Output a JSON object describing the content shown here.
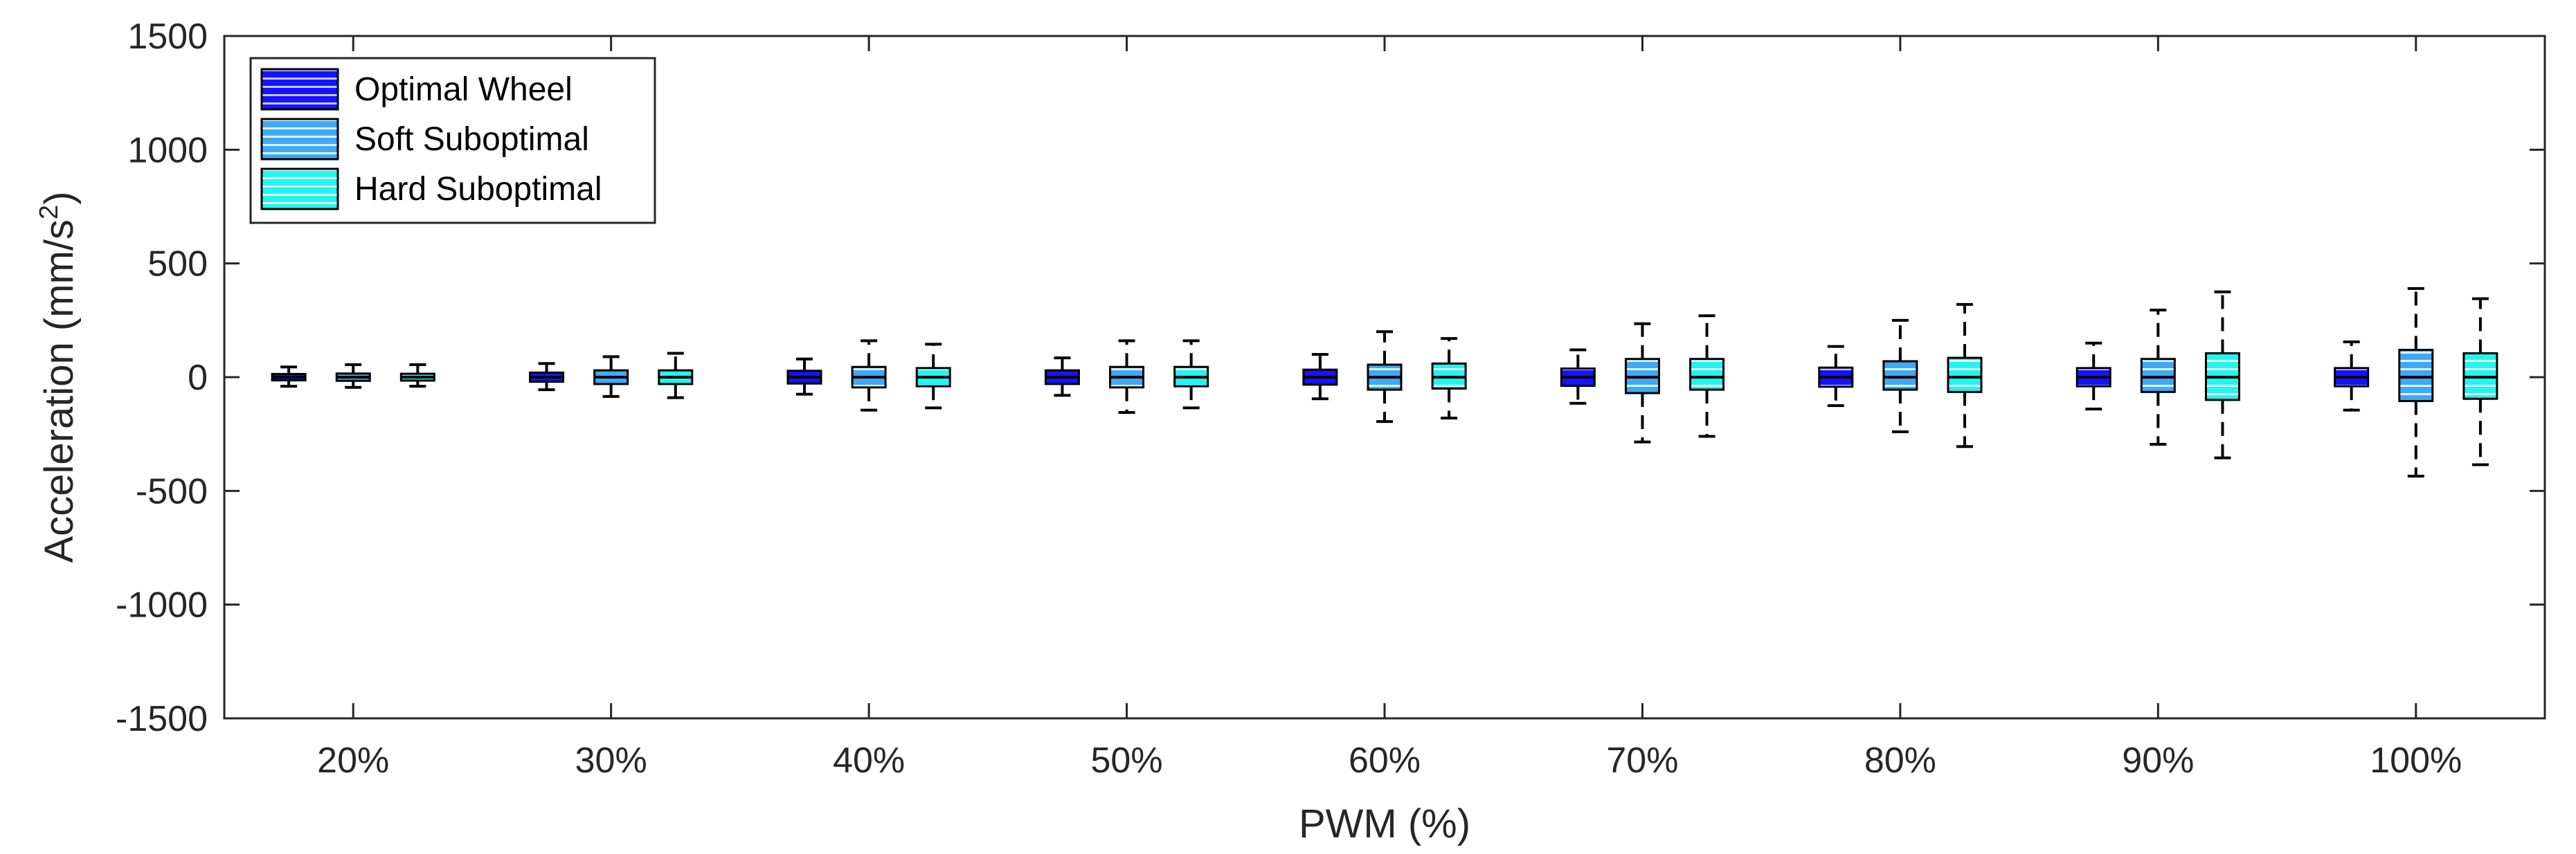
{
  "chart_data": {
    "type": "boxplot",
    "title": "",
    "xlabel": "PWM (%)",
    "ylabel_main": "Acceleration (mm/s",
    "ylabel_sup": "2",
    "ylabel_end": ")",
    "ylim": [
      -1500,
      1500
    ],
    "yticks": [
      -1500,
      -1000,
      -500,
      0,
      500,
      1000,
      1500
    ],
    "ytick_labels": [
      "-1500",
      "-1000",
      "-500",
      "0",
      "500",
      "1000",
      "1500"
    ],
    "categories": [
      "20%",
      "30%",
      "40%",
      "50%",
      "60%",
      "70%",
      "80%",
      "90%",
      "100%"
    ],
    "legend_position": "top-left",
    "series": [
      {
        "name": "Optimal Wheel",
        "color": "#1414ff",
        "stripe": "#c8c8ff",
        "boxes": [
          {
            "min": -40,
            "q1": -14,
            "median": 0,
            "q3": 14,
            "max": 45
          },
          {
            "min": -55,
            "q1": -20,
            "median": 0,
            "q3": 20,
            "max": 60
          },
          {
            "min": -75,
            "q1": -28,
            "median": 0,
            "q3": 28,
            "max": 80
          },
          {
            "min": -80,
            "q1": -30,
            "median": 0,
            "q3": 30,
            "max": 85
          },
          {
            "min": -95,
            "q1": -33,
            "median": 0,
            "q3": 33,
            "max": 100
          },
          {
            "min": -115,
            "q1": -38,
            "median": 0,
            "q3": 38,
            "max": 120
          },
          {
            "min": -125,
            "q1": -42,
            "median": 0,
            "q3": 42,
            "max": 135
          },
          {
            "min": -140,
            "q1": -40,
            "median": 0,
            "q3": 40,
            "max": 150
          },
          {
            "min": -145,
            "q1": -40,
            "median": 0,
            "q3": 40,
            "max": 155
          }
        ]
      },
      {
        "name": "Soft Suboptimal",
        "color": "#3fa9f5",
        "stripe": "#dff2ff",
        "boxes": [
          {
            "min": -45,
            "q1": -16,
            "median": 0,
            "q3": 16,
            "max": 55
          },
          {
            "min": -85,
            "q1": -30,
            "median": 0,
            "q3": 30,
            "max": 90
          },
          {
            "min": -145,
            "q1": -45,
            "median": 0,
            "q3": 45,
            "max": 160
          },
          {
            "min": -155,
            "q1": -45,
            "median": 0,
            "q3": 45,
            "max": 160
          },
          {
            "min": -195,
            "q1": -55,
            "median": 0,
            "q3": 55,
            "max": 200
          },
          {
            "min": -285,
            "q1": -70,
            "median": 0,
            "q3": 80,
            "max": 235
          },
          {
            "min": -240,
            "q1": -55,
            "median": 0,
            "q3": 70,
            "max": 250
          },
          {
            "min": -295,
            "q1": -65,
            "median": 0,
            "q3": 80,
            "max": 295
          },
          {
            "min": -435,
            "q1": -105,
            "median": 0,
            "q3": 120,
            "max": 390
          }
        ]
      },
      {
        "name": "Hard Suboptimal",
        "color": "#21f5f0",
        "stripe": "#e2fffe",
        "boxes": [
          {
            "min": -40,
            "q1": -15,
            "median": 0,
            "q3": 15,
            "max": 55
          },
          {
            "min": -90,
            "q1": -30,
            "median": 0,
            "q3": 30,
            "max": 105
          },
          {
            "min": -135,
            "q1": -40,
            "median": 0,
            "q3": 40,
            "max": 145
          },
          {
            "min": -135,
            "q1": -40,
            "median": 0,
            "q3": 45,
            "max": 160
          },
          {
            "min": -180,
            "q1": -50,
            "median": 0,
            "q3": 60,
            "max": 170
          },
          {
            "min": -260,
            "q1": -55,
            "median": 0,
            "q3": 80,
            "max": 270
          },
          {
            "min": -305,
            "q1": -65,
            "median": 0,
            "q3": 85,
            "max": 320
          },
          {
            "min": -355,
            "q1": -100,
            "median": 0,
            "q3": 105,
            "max": 375
          },
          {
            "min": -385,
            "q1": -95,
            "median": 0,
            "q3": 105,
            "max": 345
          }
        ]
      }
    ]
  }
}
